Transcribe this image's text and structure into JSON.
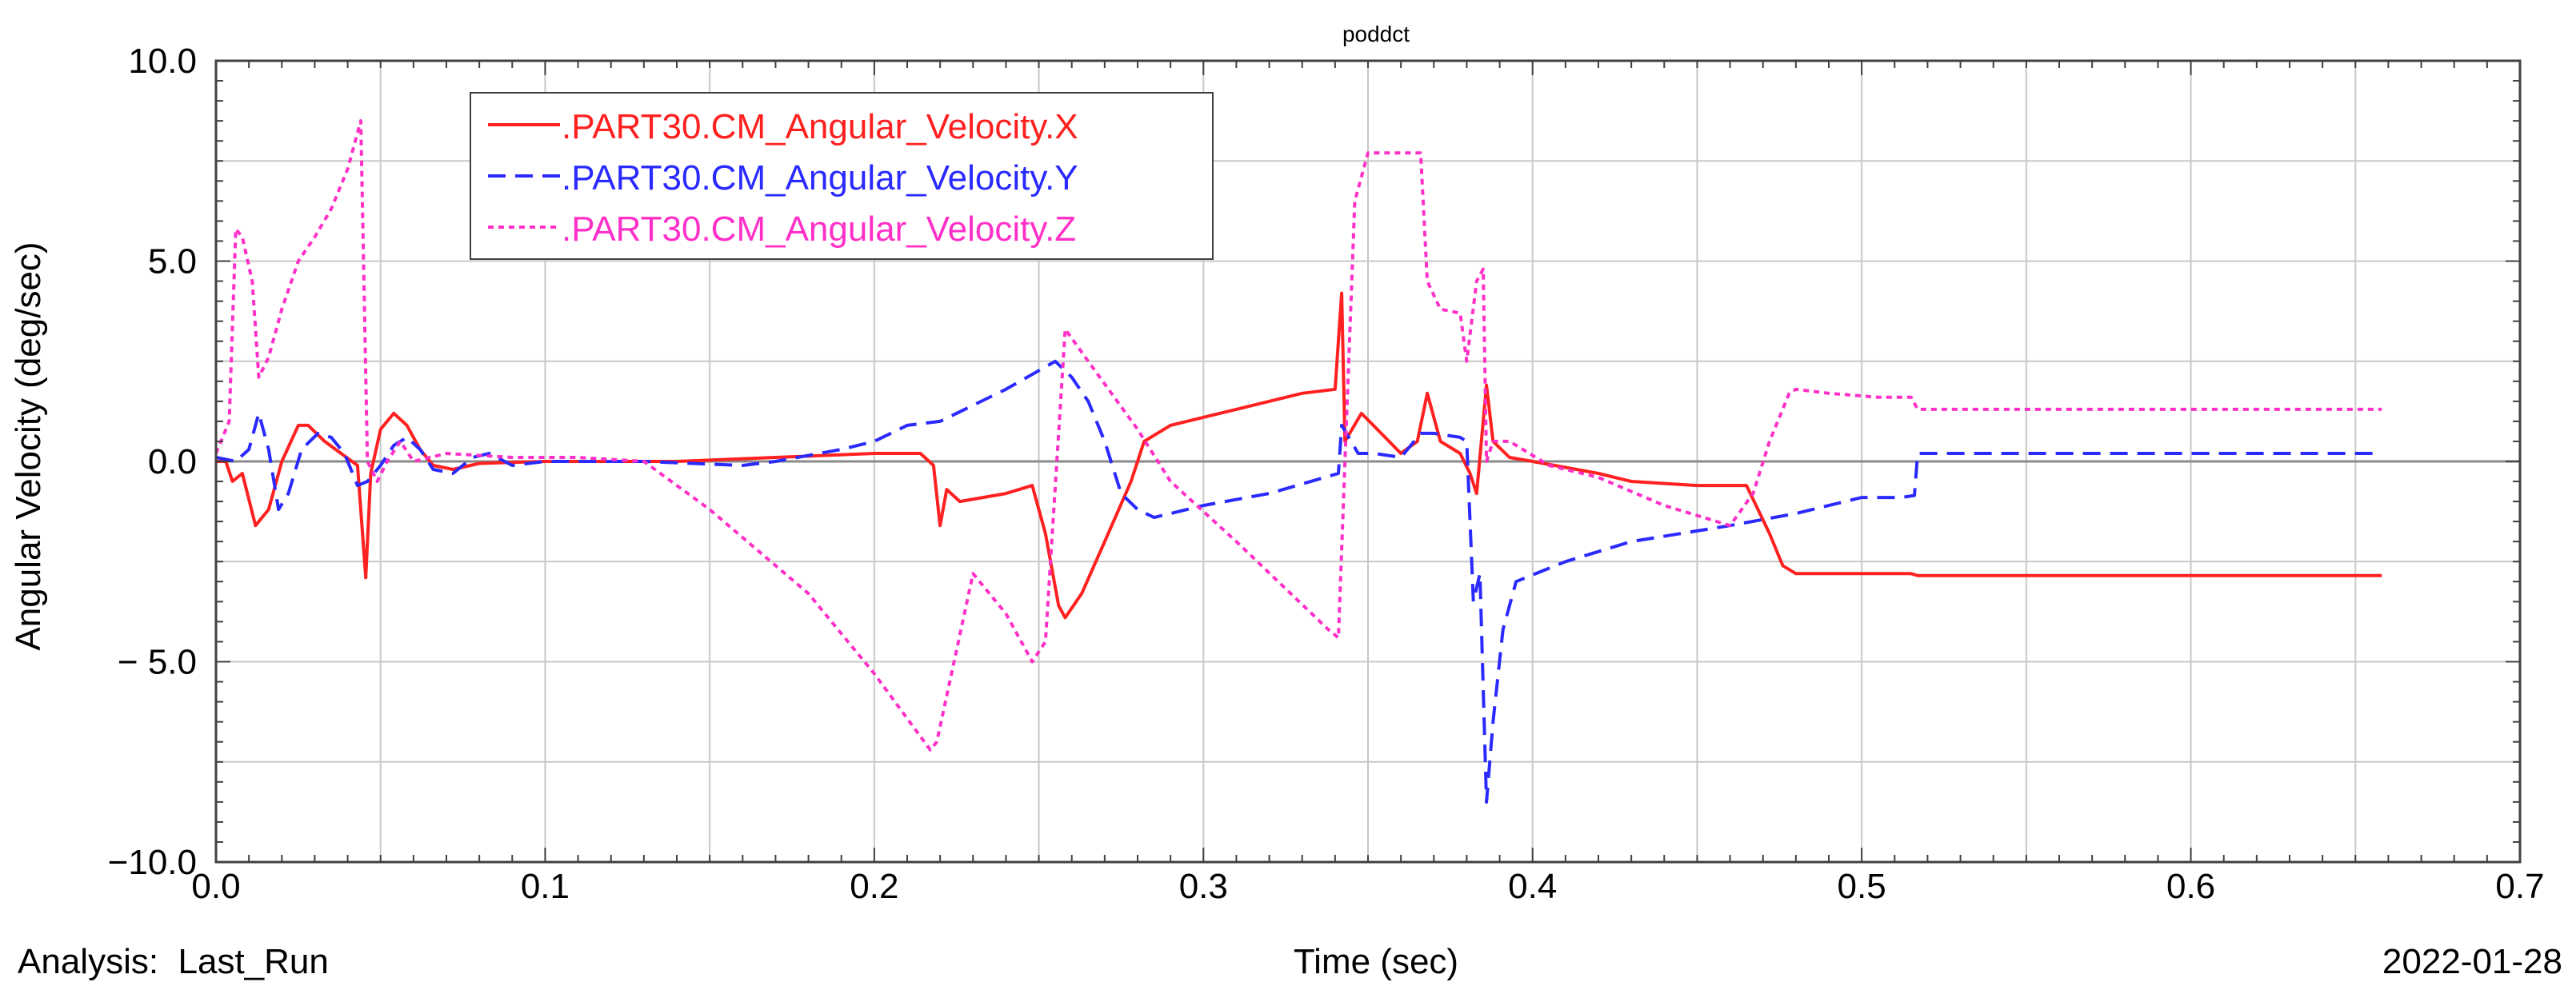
{
  "chart_data": {
    "type": "line",
    "title": "poddct",
    "xlabel": "Time (sec)",
    "ylabel": "Angular Velocity (deg/sec)",
    "xlim": [
      0.0,
      0.7
    ],
    "ylim": [
      -10.0,
      10.0
    ],
    "x_ticks": [
      0.0,
      0.1,
      0.2,
      0.3,
      0.4,
      0.5,
      0.6,
      0.7
    ],
    "x_tick_labels": [
      "0.0",
      "0.1",
      "0.2",
      "0.3",
      "0.4",
      "0.5",
      "0.6",
      "0.7"
    ],
    "y_ticks": [
      10.0,
      5.0,
      0.0,
      -5.0,
      -10.0
    ],
    "y_tick_labels": [
      "10.0",
      "5.0",
      "0.0",
      "− 5.0",
      "−10.0"
    ],
    "grid": true,
    "legend_position": "top-left",
    "footer_left": "Analysis:  Last_Run",
    "footer_right": "2022-01-28",
    "series": [
      {
        "name": ".PART30.CM_Angular_Velocity.X",
        "color": "#ff2020",
        "dash": "solid",
        "points": [
          [
            0.0,
            0.0
          ],
          [
            0.003,
            0.0
          ],
          [
            0.005,
            -0.5
          ],
          [
            0.008,
            -0.3
          ],
          [
            0.012,
            -1.6
          ],
          [
            0.016,
            -1.2
          ],
          [
            0.02,
            0.0
          ],
          [
            0.025,
            0.9
          ],
          [
            0.028,
            0.9
          ],
          [
            0.033,
            0.5
          ],
          [
            0.038,
            0.2
          ],
          [
            0.043,
            -0.1
          ],
          [
            0.0455,
            -2.9
          ],
          [
            0.047,
            -0.3
          ],
          [
            0.05,
            0.8
          ],
          [
            0.054,
            1.2
          ],
          [
            0.058,
            0.9
          ],
          [
            0.062,
            0.3
          ],
          [
            0.066,
            -0.1
          ],
          [
            0.072,
            -0.2
          ],
          [
            0.08,
            -0.05
          ],
          [
            0.1,
            0.0
          ],
          [
            0.14,
            0.0
          ],
          [
            0.17,
            0.1
          ],
          [
            0.2,
            0.2
          ],
          [
            0.214,
            0.2
          ],
          [
            0.218,
            -0.1
          ],
          [
            0.22,
            -1.6
          ],
          [
            0.222,
            -0.7
          ],
          [
            0.226,
            -1.0
          ],
          [
            0.24,
            -0.8
          ],
          [
            0.248,
            -0.6
          ],
          [
            0.252,
            -1.8
          ],
          [
            0.256,
            -3.6
          ],
          [
            0.258,
            -3.9
          ],
          [
            0.263,
            -3.3
          ],
          [
            0.27,
            -2.0
          ],
          [
            0.278,
            -0.5
          ],
          [
            0.282,
            0.5
          ],
          [
            0.29,
            0.9
          ],
          [
            0.31,
            1.3
          ],
          [
            0.33,
            1.7
          ],
          [
            0.34,
            1.8
          ],
          [
            0.342,
            4.2
          ],
          [
            0.343,
            0.5
          ],
          [
            0.348,
            1.2
          ],
          [
            0.354,
            0.7
          ],
          [
            0.36,
            0.2
          ],
          [
            0.365,
            0.5
          ],
          [
            0.368,
            1.7
          ],
          [
            0.372,
            0.5
          ],
          [
            0.378,
            0.2
          ],
          [
            0.381,
            -0.3
          ],
          [
            0.383,
            -0.8
          ],
          [
            0.386,
            1.9
          ],
          [
            0.388,
            0.5
          ],
          [
            0.393,
            0.1
          ],
          [
            0.4,
            0.0
          ],
          [
            0.42,
            -0.3
          ],
          [
            0.43,
            -0.5
          ],
          [
            0.45,
            -0.6
          ],
          [
            0.465,
            -0.6
          ],
          [
            0.472,
            -1.8
          ],
          [
            0.476,
            -2.6
          ],
          [
            0.48,
            -2.8
          ],
          [
            0.5,
            -2.8
          ],
          [
            0.515,
            -2.8
          ],
          [
            0.517,
            -2.85
          ],
          [
            0.56,
            -2.85
          ],
          [
            0.6,
            -2.85
          ],
          [
            0.658,
            -2.85
          ]
        ]
      },
      {
        "name": ".PART30.CM_Angular_Velocity.Y",
        "color": "#2a2aff",
        "dash": "dashed",
        "points": [
          [
            0.0,
            0.1
          ],
          [
            0.006,
            0.0
          ],
          [
            0.01,
            0.3
          ],
          [
            0.013,
            1.2
          ],
          [
            0.016,
            0.3
          ],
          [
            0.019,
            -1.2
          ],
          [
            0.022,
            -0.8
          ],
          [
            0.026,
            0.3
          ],
          [
            0.031,
            0.7
          ],
          [
            0.035,
            0.6
          ],
          [
            0.039,
            0.2
          ],
          [
            0.043,
            -0.6
          ],
          [
            0.046,
            -0.5
          ],
          [
            0.05,
            -0.1
          ],
          [
            0.054,
            0.4
          ],
          [
            0.058,
            0.6
          ],
          [
            0.062,
            0.3
          ],
          [
            0.066,
            -0.2
          ],
          [
            0.072,
            -0.3
          ],
          [
            0.078,
            0.1
          ],
          [
            0.083,
            0.2
          ],
          [
            0.09,
            -0.1
          ],
          [
            0.1,
            0.0
          ],
          [
            0.13,
            0.0
          ],
          [
            0.16,
            -0.1
          ],
          [
            0.17,
            0.0
          ],
          [
            0.19,
            0.3
          ],
          [
            0.2,
            0.5
          ],
          [
            0.21,
            0.9
          ],
          [
            0.22,
            1.0
          ],
          [
            0.24,
            1.8
          ],
          [
            0.255,
            2.5
          ],
          [
            0.26,
            2.1
          ],
          [
            0.265,
            1.5
          ],
          [
            0.27,
            0.5
          ],
          [
            0.275,
            -0.8
          ],
          [
            0.28,
            -1.2
          ],
          [
            0.285,
            -1.4
          ],
          [
            0.3,
            -1.1
          ],
          [
            0.32,
            -0.8
          ],
          [
            0.341,
            -0.3
          ],
          [
            0.342,
            0.9
          ],
          [
            0.347,
            0.2
          ],
          [
            0.352,
            0.2
          ],
          [
            0.36,
            0.1
          ],
          [
            0.366,
            0.7
          ],
          [
            0.37,
            0.7
          ],
          [
            0.378,
            0.6
          ],
          [
            0.38,
            0.5
          ],
          [
            0.382,
            -3.5
          ],
          [
            0.384,
            -2.8
          ],
          [
            0.386,
            -8.5
          ],
          [
            0.388,
            -6.5
          ],
          [
            0.391,
            -4.2
          ],
          [
            0.395,
            -3.0
          ],
          [
            0.41,
            -2.5
          ],
          [
            0.43,
            -2.0
          ],
          [
            0.46,
            -1.6
          ],
          [
            0.48,
            -1.3
          ],
          [
            0.5,
            -0.9
          ],
          [
            0.505,
            -0.9
          ],
          [
            0.512,
            -0.9
          ],
          [
            0.516,
            -0.85
          ],
          [
            0.517,
            0.2
          ],
          [
            0.54,
            0.2
          ],
          [
            0.6,
            0.2
          ],
          [
            0.658,
            0.2
          ]
        ]
      },
      {
        "name": ".PART30.CM_Angular_Velocity.Z",
        "color": "#ff30c8",
        "dash": "dotted",
        "points": [
          [
            0.0,
            0.2
          ],
          [
            0.004,
            1.0
          ],
          [
            0.006,
            5.8
          ],
          [
            0.008,
            5.6
          ],
          [
            0.011,
            4.5
          ],
          [
            0.013,
            2.1
          ],
          [
            0.016,
            2.6
          ],
          [
            0.02,
            3.8
          ],
          [
            0.025,
            5.0
          ],
          [
            0.03,
            5.6
          ],
          [
            0.035,
            6.3
          ],
          [
            0.04,
            7.3
          ],
          [
            0.044,
            8.5
          ],
          [
            0.046,
            0.0
          ],
          [
            0.049,
            -0.5
          ],
          [
            0.052,
            0.0
          ],
          [
            0.056,
            0.5
          ],
          [
            0.06,
            0.0
          ],
          [
            0.07,
            0.2
          ],
          [
            0.09,
            0.1
          ],
          [
            0.11,
            0.1
          ],
          [
            0.13,
            0.0
          ],
          [
            0.15,
            -1.2
          ],
          [
            0.18,
            -3.3
          ],
          [
            0.2,
            -5.3
          ],
          [
            0.217,
            -7.2
          ],
          [
            0.219,
            -7.0
          ],
          [
            0.23,
            -2.8
          ],
          [
            0.24,
            -3.8
          ],
          [
            0.248,
            -5.0
          ],
          [
            0.252,
            -4.5
          ],
          [
            0.258,
            3.3
          ],
          [
            0.265,
            2.5
          ],
          [
            0.28,
            0.8
          ],
          [
            0.29,
            -0.5
          ],
          [
            0.31,
            -2.0
          ],
          [
            0.338,
            -4.2
          ],
          [
            0.341,
            -4.4
          ],
          [
            0.343,
            0.0
          ],
          [
            0.346,
            6.5
          ],
          [
            0.35,
            7.7
          ],
          [
            0.356,
            7.7
          ],
          [
            0.366,
            7.7
          ],
          [
            0.368,
            4.5
          ],
          [
            0.372,
            3.8
          ],
          [
            0.378,
            3.7
          ],
          [
            0.38,
            2.5
          ],
          [
            0.383,
            4.5
          ],
          [
            0.385,
            4.8
          ],
          [
            0.386,
            0.0
          ],
          [
            0.388,
            0.5
          ],
          [
            0.393,
            0.5
          ],
          [
            0.405,
            -0.1
          ],
          [
            0.42,
            -0.4
          ],
          [
            0.44,
            -1.1
          ],
          [
            0.46,
            -1.6
          ],
          [
            0.467,
            -0.8
          ],
          [
            0.472,
            0.5
          ],
          [
            0.478,
            1.7
          ],
          [
            0.48,
            1.8
          ],
          [
            0.49,
            1.7
          ],
          [
            0.505,
            1.6
          ],
          [
            0.515,
            1.6
          ],
          [
            0.517,
            1.3
          ],
          [
            0.55,
            1.3
          ],
          [
            0.6,
            1.3
          ],
          [
            0.658,
            1.3
          ]
        ]
      }
    ]
  }
}
